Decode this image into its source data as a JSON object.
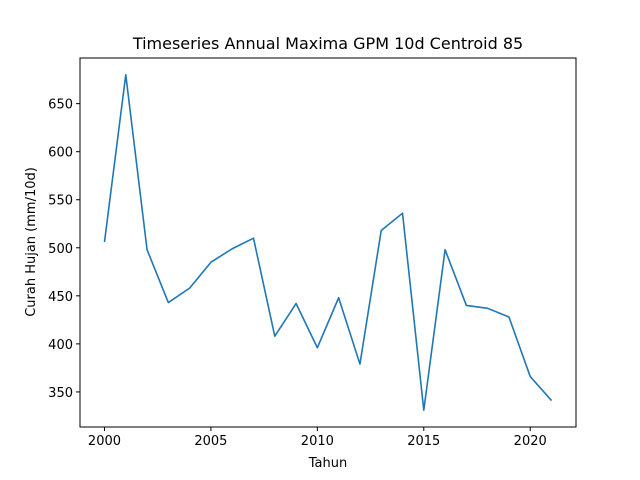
{
  "chart_data": {
    "type": "line",
    "title": "Timeseries Annual Maxima GPM 10d Centroid 85",
    "xlabel": "Tahun",
    "ylabel": "Curah Hujan (mm/10d)",
    "xlim": [
      1998.85,
      2022.15
    ],
    "ylim": [
      313.5,
      697.5
    ],
    "xticks": [
      2000,
      2005,
      2010,
      2015,
      2020
    ],
    "yticks": [
      350,
      400,
      450,
      500,
      550,
      600,
      650
    ],
    "grid": false,
    "series": [
      {
        "color": "#1f77b4",
        "x": [
          2000,
          2001,
          2002,
          2003,
          2004,
          2005,
          2006,
          2007,
          2008,
          2009,
          2010,
          2011,
          2012,
          2013,
          2014,
          2015,
          2016,
          2017,
          2018,
          2019,
          2020,
          2021
        ],
        "y": [
          506,
          680,
          498,
          443,
          458,
          485,
          499,
          510,
          408,
          442,
          396,
          448,
          379,
          518,
          536,
          331,
          498,
          440,
          437,
          428,
          366,
          341
        ]
      }
    ]
  }
}
